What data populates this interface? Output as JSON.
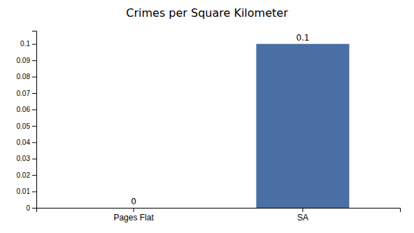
{
  "chart_data": {
    "type": "bar",
    "title": "Crimes per Square Kilometer",
    "categories": [
      "Pages Flat",
      "SA"
    ],
    "values": [
      0.0,
      0.1
    ],
    "colors": [
      "#4a6fa5",
      "#4a6fa5"
    ],
    "ylim": [
      0,
      0.108
    ],
    "yticks": [
      0,
      0.01,
      0.02,
      0.03,
      0.04,
      0.05,
      0.06,
      0.07,
      0.08,
      0.09,
      0.1
    ],
    "grid": false,
    "data_labels": true
  }
}
